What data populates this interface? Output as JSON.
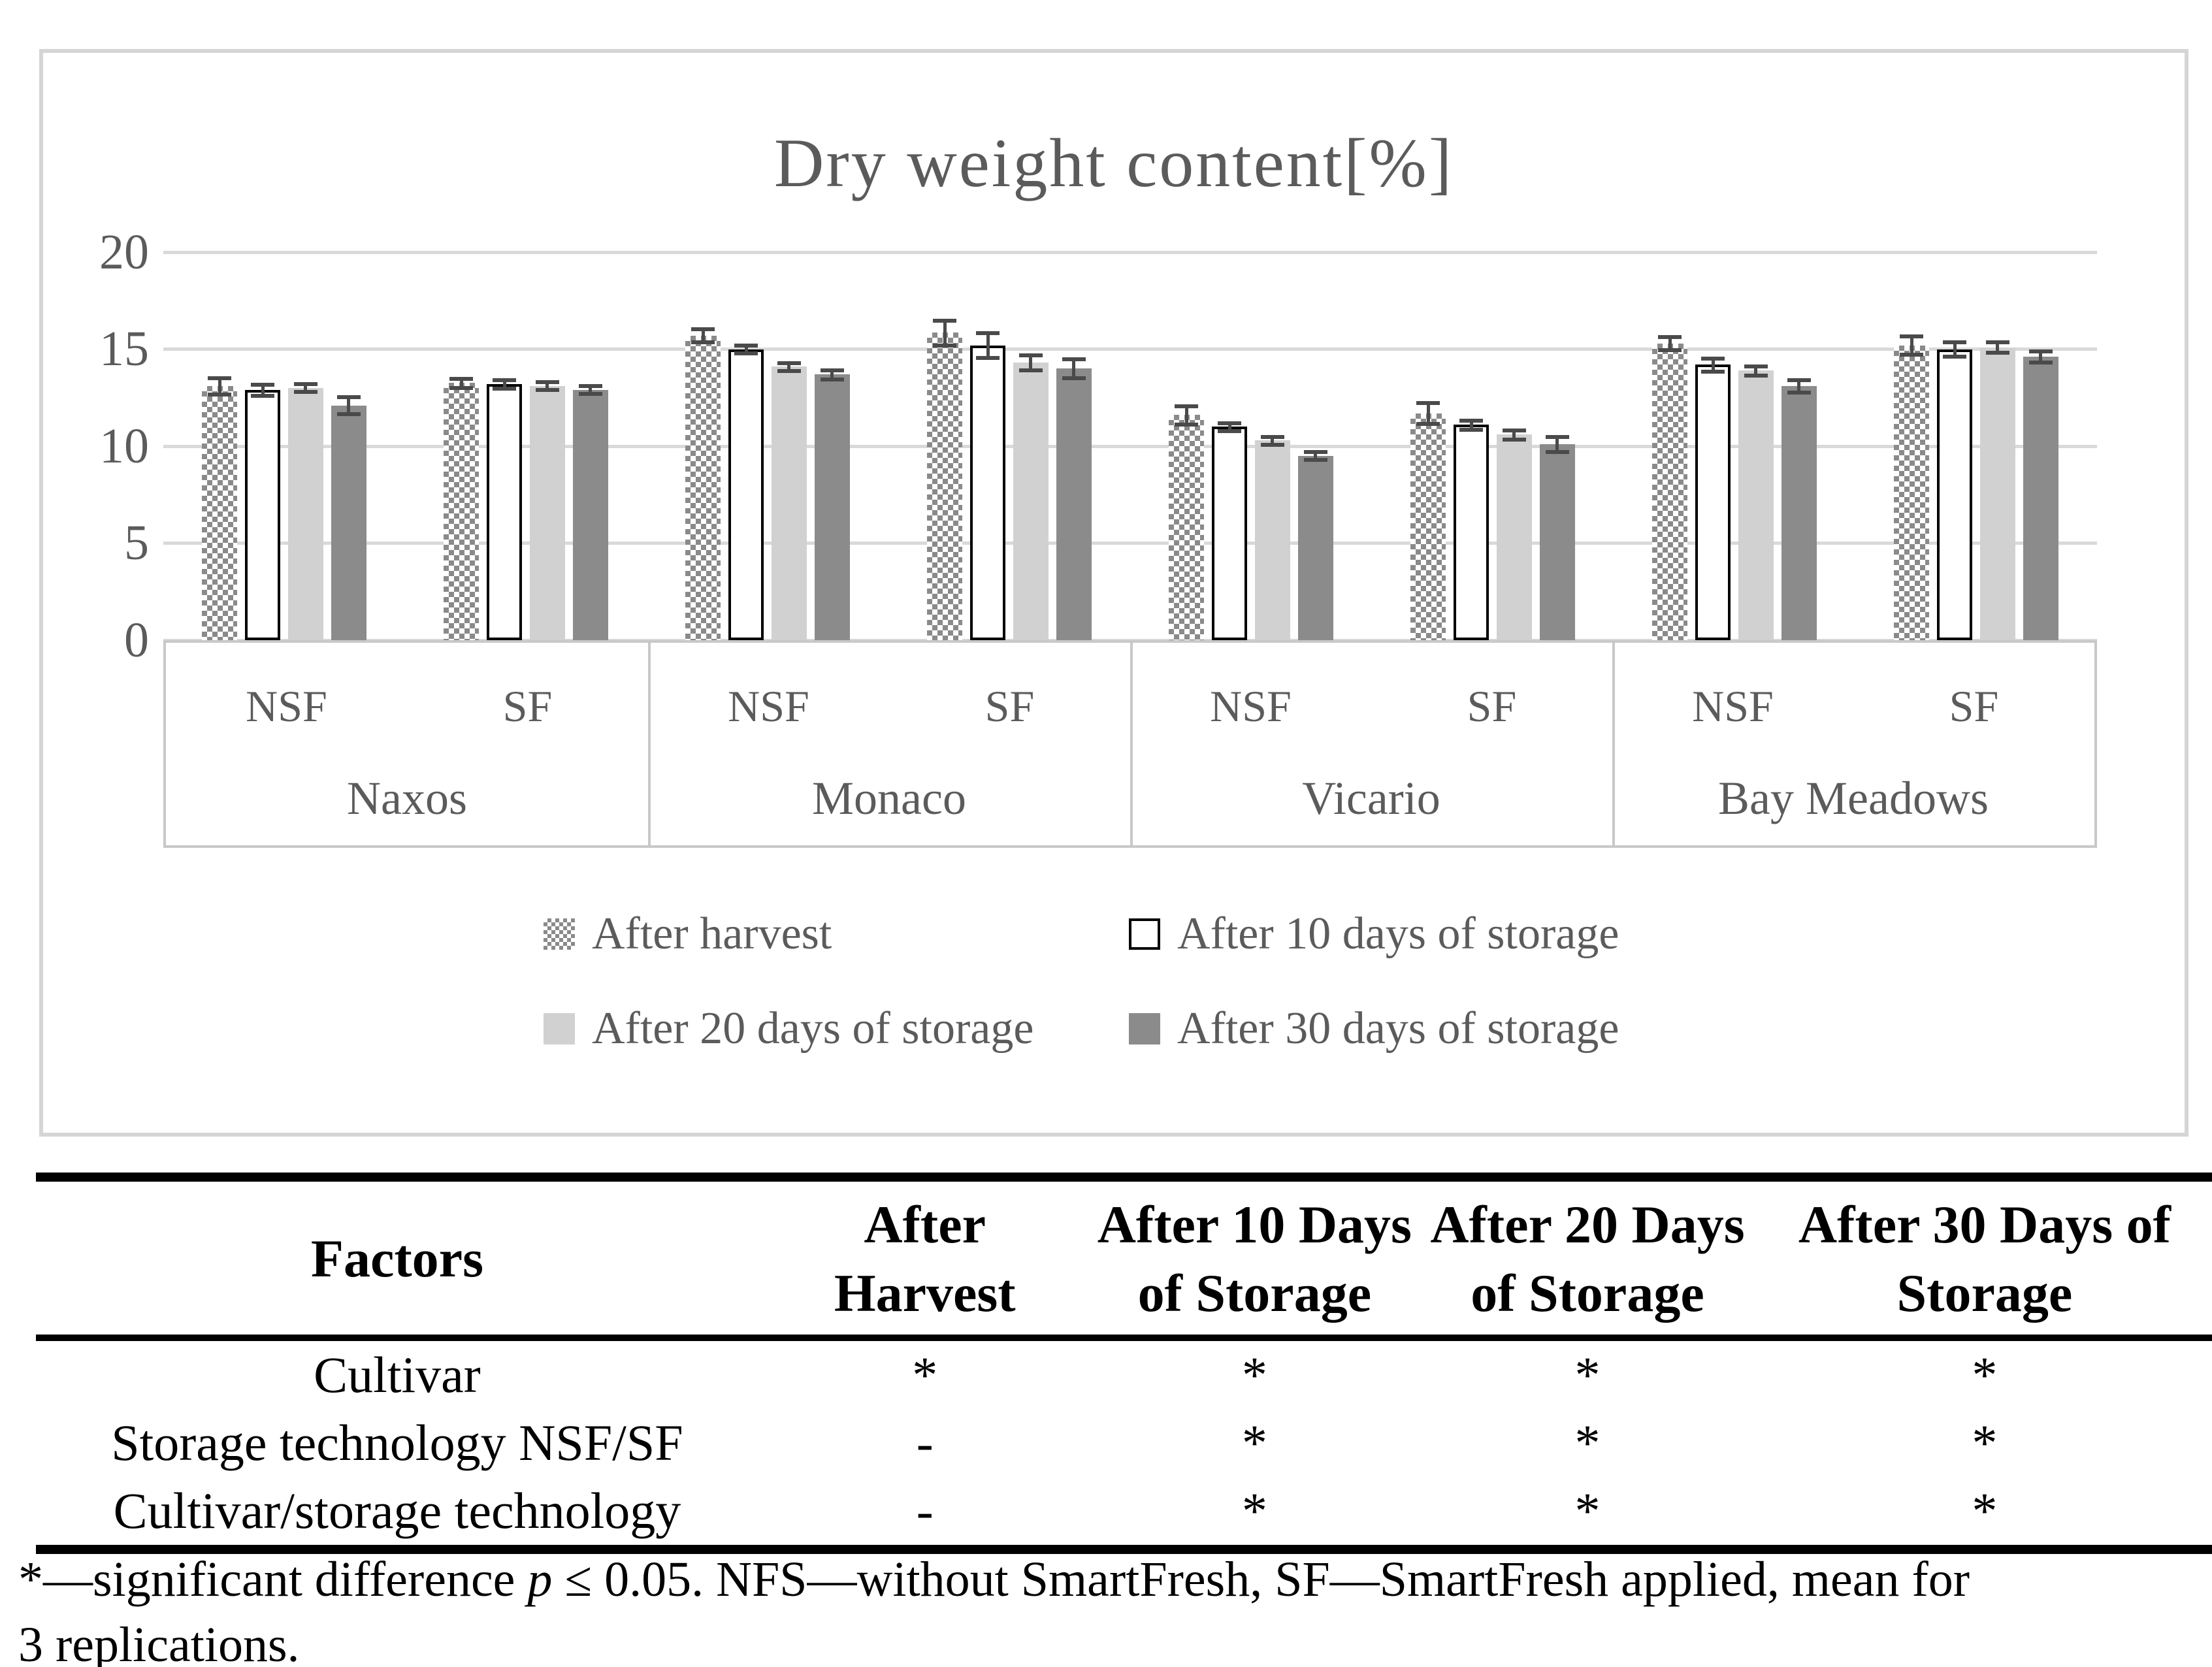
{
  "figure": {
    "title": "Dry weight content[%]",
    "y_ticks": [
      "20",
      "15",
      "10",
      "5",
      "0"
    ]
  },
  "chart_data": {
    "type": "bar",
    "title": "Dry weight content[%]",
    "ylabel": "Dry weight content [%]",
    "ylim": [
      0,
      20
    ],
    "yticks": [
      0,
      5,
      10,
      15,
      20
    ],
    "grid": true,
    "legend_position": "bottom",
    "group_labels": [
      "Naxos",
      "Monaco",
      "Vicario",
      "Bay Meadows"
    ],
    "subgroup_labels": [
      "NSF",
      "SF",
      "NSF",
      "SF",
      "NSF",
      "SF",
      "NSF",
      "SF"
    ],
    "categories": [
      "Naxos NSF",
      "Naxos SF",
      "Monaco NSF",
      "Monaco SF",
      "Vicario NSF",
      "Vicario SF",
      "Bay Meadows NSF",
      "Bay Meadows SF"
    ],
    "series": [
      {
        "name": "After harvest",
        "pattern": "checker",
        "values": [
          13.1,
          13.25,
          15.7,
          15.85,
          11.6,
          11.7,
          15.3,
          15.2
        ],
        "errors": [
          0.35,
          0.15,
          0.25,
          0.55,
          0.4,
          0.45,
          0.25,
          0.4
        ]
      },
      {
        "name": "After 10 days of storage",
        "pattern": "white",
        "values": [
          12.9,
          13.2,
          15.0,
          15.2,
          11.0,
          11.1,
          14.2,
          15.0
        ],
        "errors": [
          0.2,
          0.15,
          0.12,
          0.55,
          0.12,
          0.15,
          0.25,
          0.3
        ]
      },
      {
        "name": "After 20 days of storage",
        "pattern": "lightgray",
        "values": [
          13.0,
          13.1,
          14.1,
          14.3,
          10.3,
          10.6,
          13.9,
          15.1
        ],
        "errors": [
          0.12,
          0.12,
          0.12,
          0.3,
          0.12,
          0.15,
          0.15,
          0.2
        ]
      },
      {
        "name": "After 30 days of storage",
        "pattern": "darkgray",
        "values": [
          12.1,
          12.9,
          13.7,
          14.0,
          9.5,
          10.1,
          13.1,
          14.6
        ],
        "errors": [
          0.35,
          0.12,
          0.15,
          0.4,
          0.12,
          0.3,
          0.25,
          0.2
        ]
      }
    ],
    "colors": {
      "checker": "#8a8a8a",
      "white": "#ffffff",
      "lightgray": "#d1d1d1",
      "darkgray": "#8b8b8b",
      "error_bar": "#4a4a4a",
      "gridline": "#d9d9d9",
      "axis_text": "#5b5b5b"
    }
  },
  "table": {
    "header": {
      "factors": "Factors",
      "cols": [
        {
          "line1": "After",
          "line2": "Harvest"
        },
        {
          "line1": "After 10 Days",
          "line2": "of Storage"
        },
        {
          "line1": "After 20 Days",
          "line2": "of Storage"
        },
        {
          "line1": "After 30 Days of",
          "line2": "Storage"
        }
      ]
    },
    "rows": [
      {
        "label": "Cultivar",
        "values": [
          "*",
          "*",
          "*",
          "*"
        ]
      },
      {
        "label": "Storage technology NSF/SF",
        "values": [
          "-",
          "*",
          "*",
          "*"
        ]
      },
      {
        "label": "Cultivar/storage technology",
        "values": [
          "-",
          "*",
          "*",
          "*"
        ]
      }
    ]
  },
  "footnote": {
    "lead": "*—significant difference ",
    "p_symbol": "p",
    "line1_rest": " ≤ 0.05. NFS—without SmartFresh, SF—SmartFresh applied, mean for",
    "line2": "3 replications."
  }
}
